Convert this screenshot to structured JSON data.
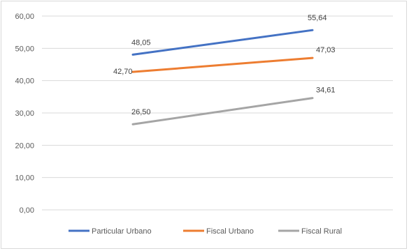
{
  "chart_data": {
    "type": "line",
    "title": "",
    "xlabel": "",
    "ylabel": "",
    "x": [
      "",
      ""
    ],
    "ylim": [
      0,
      60
    ],
    "yticks": [
      "0,00",
      "10,00",
      "20,00",
      "30,00",
      "40,00",
      "50,00",
      "60,00"
    ],
    "grid": true,
    "legend": "bottom",
    "series": [
      {
        "name": "Particular Urbano",
        "color": "#4472c4",
        "values": [
          48.05,
          55.64
        ],
        "labels": [
          "48,05",
          "55,64"
        ]
      },
      {
        "name": "Fiscal Urbano",
        "color": "#ed7d31",
        "values": [
          42.7,
          47.03
        ],
        "labels": [
          "42,70",
          "47,03"
        ]
      },
      {
        "name": "Fiscal Rural",
        "color": "#a5a5a5",
        "values": [
          26.5,
          34.61
        ],
        "labels": [
          "26,50",
          "34,61"
        ]
      }
    ]
  }
}
